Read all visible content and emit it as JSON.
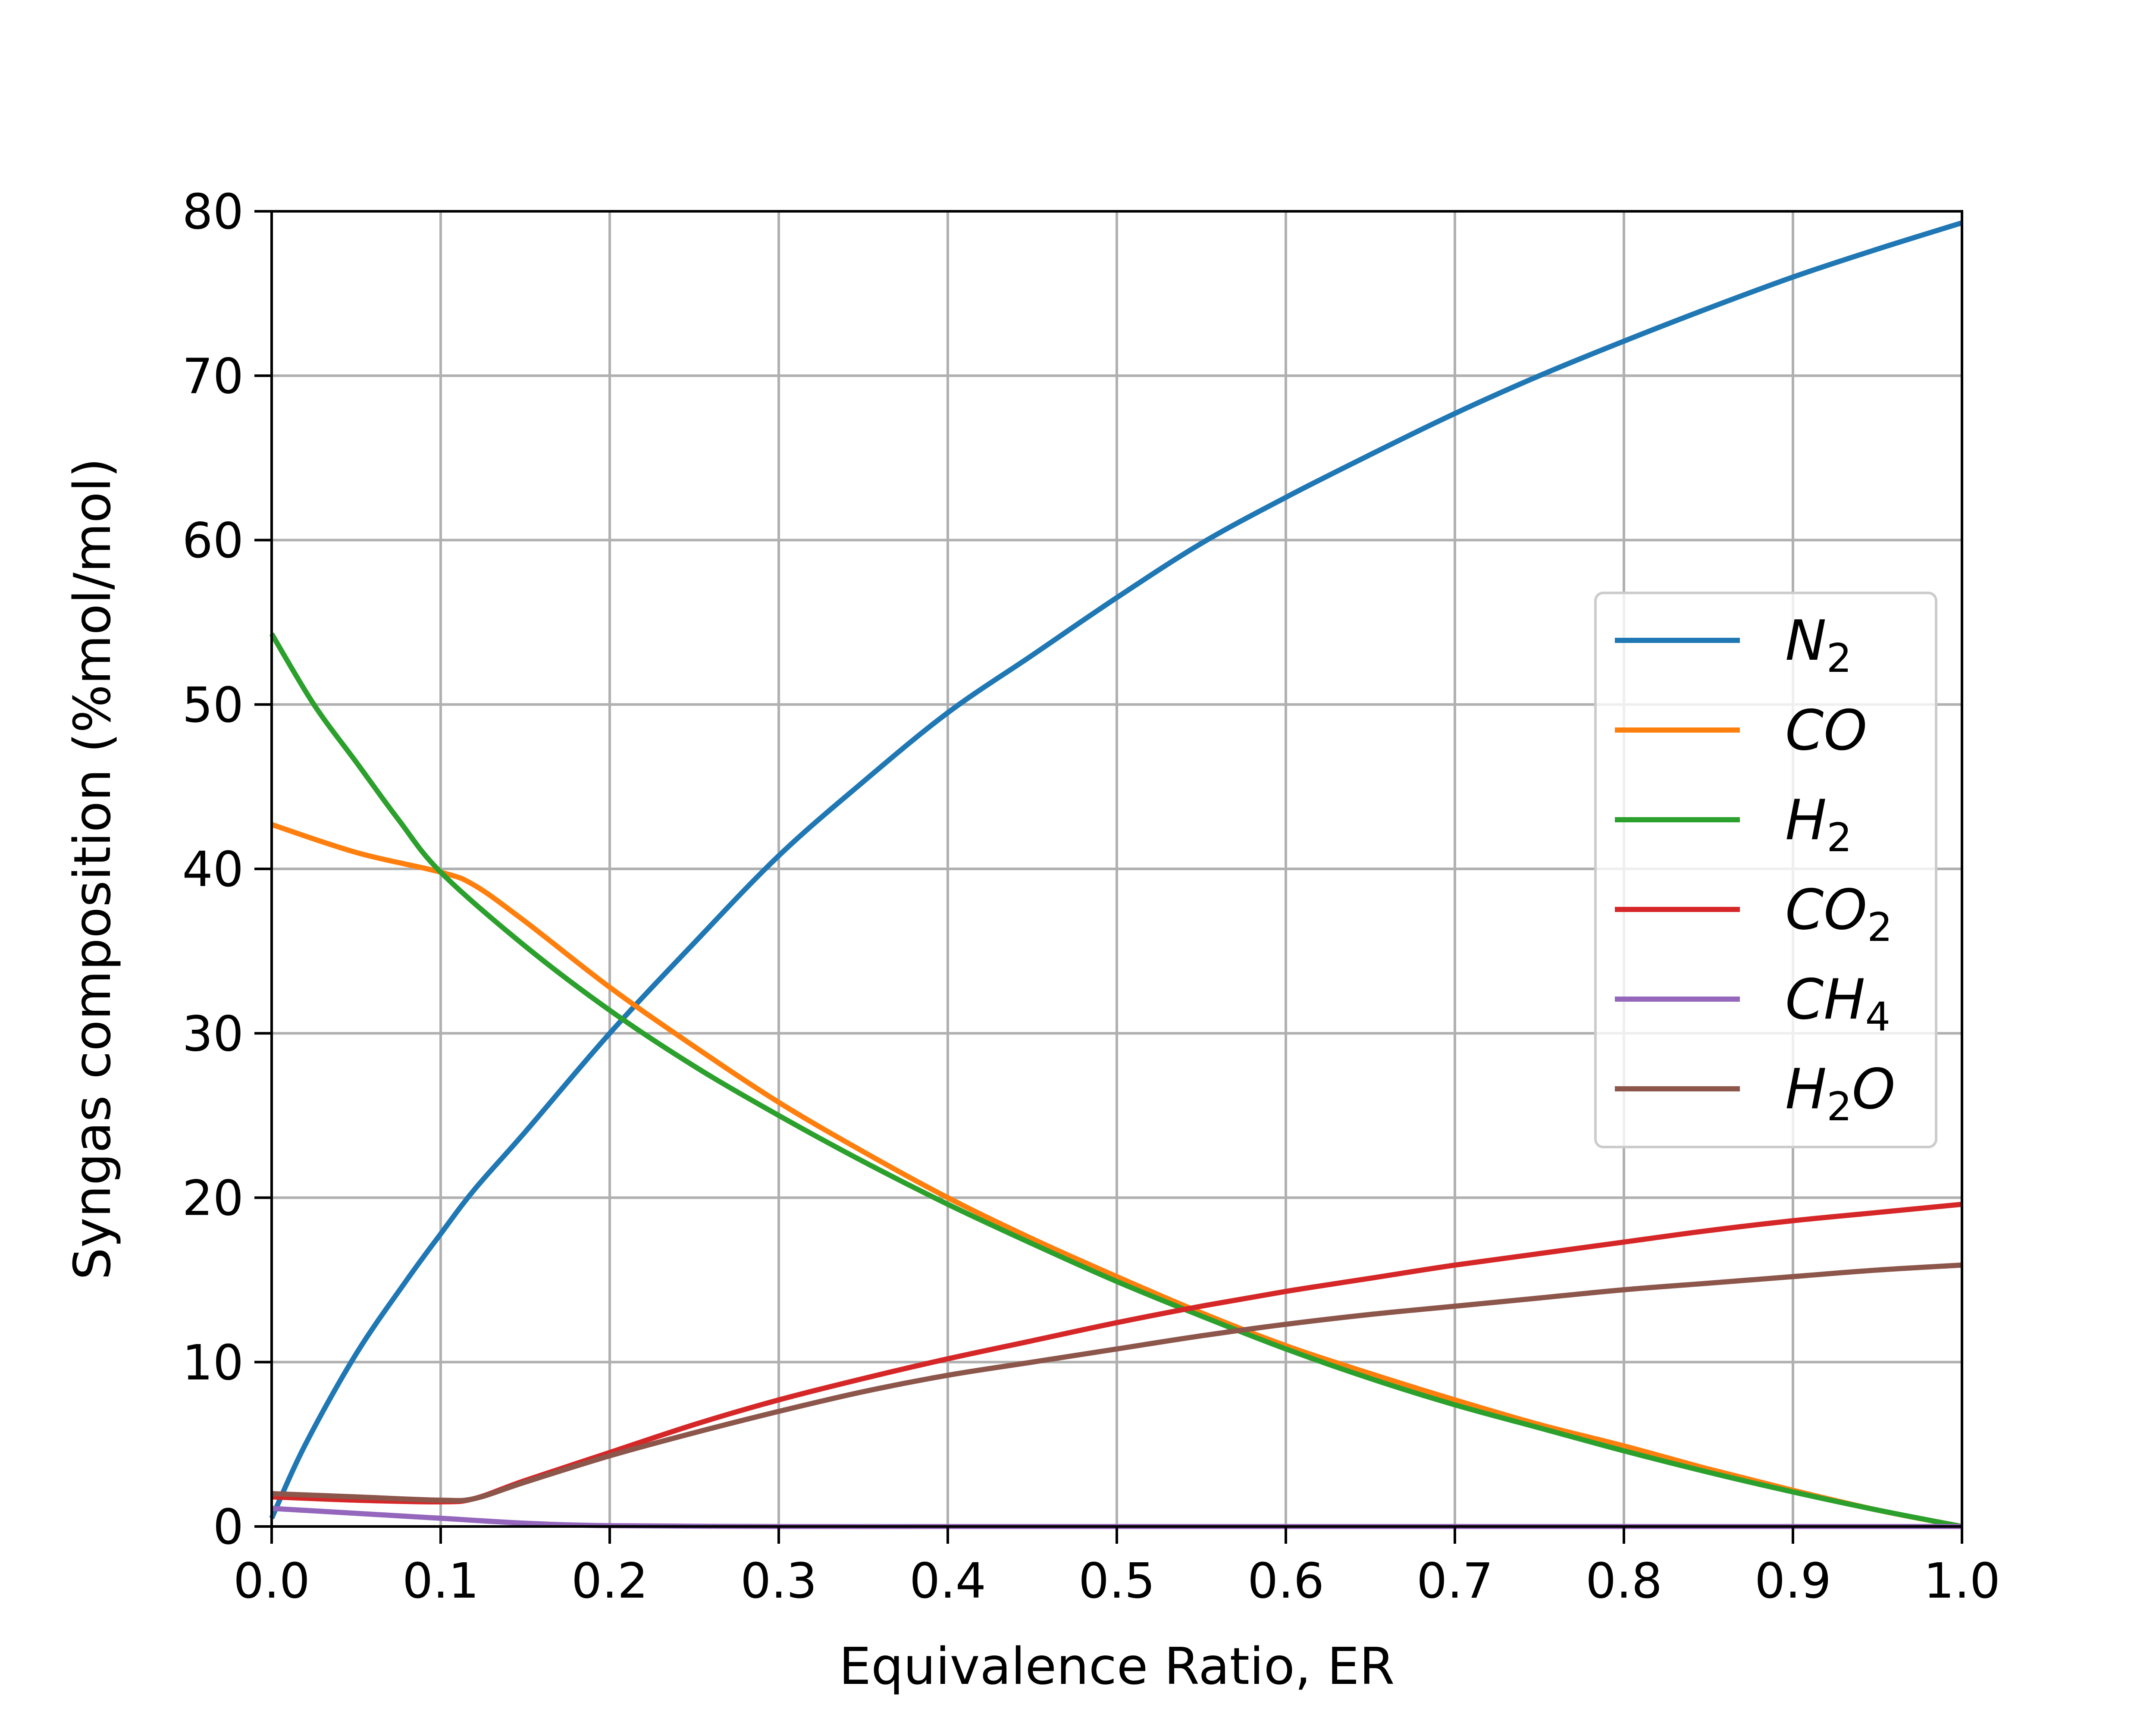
{
  "chart_data": {
    "type": "line",
    "title": "",
    "xlabel": "Equivalence Ratio, ER",
    "ylabel": "Syngas composition (%mol/mol)",
    "xlim": [
      0.0,
      1.0
    ],
    "ylim": [
      0,
      80
    ],
    "xticks": [
      "0.0",
      "0.1",
      "0.2",
      "0.3",
      "0.4",
      "0.5",
      "0.6",
      "0.7",
      "0.8",
      "0.9",
      "1.0"
    ],
    "yticks": [
      "0",
      "10",
      "20",
      "30",
      "40",
      "50",
      "60",
      "70",
      "80"
    ],
    "grid": true,
    "legend_position": "center-right",
    "series": [
      {
        "name": "N2",
        "label_main": "N",
        "label_sub": "2",
        "label_tail": "",
        "color": "#1f77b4",
        "x": [
          0.0,
          0.02,
          0.05,
          0.08,
          0.1,
          0.12,
          0.15,
          0.2,
          0.25,
          0.3,
          0.35,
          0.4,
          0.45,
          0.5,
          0.55,
          0.6,
          0.65,
          0.7,
          0.75,
          0.8,
          0.85,
          0.9,
          0.95,
          1.0
        ],
        "y": [
          0.5,
          5.0,
          10.5,
          15.0,
          17.8,
          20.5,
          24.0,
          30.0,
          35.5,
          40.8,
          45.3,
          49.5,
          53.0,
          56.5,
          59.8,
          62.6,
          65.2,
          67.7,
          70.0,
          72.1,
          74.1,
          76.0,
          77.7,
          79.3
        ]
      },
      {
        "name": "CO",
        "label_main": "CO",
        "label_sub": "",
        "label_tail": "",
        "color": "#ff7f0e",
        "x": [
          0.0,
          0.05,
          0.1,
          0.12,
          0.15,
          0.2,
          0.25,
          0.3,
          0.35,
          0.4,
          0.45,
          0.5,
          0.55,
          0.6,
          0.65,
          0.7,
          0.75,
          0.8,
          0.85,
          0.9,
          0.95,
          1.0
        ],
        "y": [
          42.7,
          41.0,
          39.8,
          39.0,
          36.8,
          32.8,
          29.2,
          25.8,
          22.8,
          20.0,
          17.5,
          15.2,
          13.0,
          11.0,
          9.3,
          7.7,
          6.2,
          4.9,
          3.5,
          2.2,
          1.0,
          0.0
        ]
      },
      {
        "name": "H2",
        "label_main": "H",
        "label_sub": "2",
        "label_tail": "",
        "color": "#2ca02c",
        "x": [
          0.0,
          0.025,
          0.05,
          0.075,
          0.1,
          0.15,
          0.2,
          0.25,
          0.3,
          0.35,
          0.4,
          0.45,
          0.5,
          0.55,
          0.6,
          0.65,
          0.7,
          0.75,
          0.8,
          0.85,
          0.9,
          0.95,
          1.0
        ],
        "y": [
          54.3,
          50.0,
          46.5,
          43.0,
          39.8,
          35.3,
          31.4,
          28.0,
          25.0,
          22.2,
          19.6,
          17.2,
          14.9,
          12.8,
          10.8,
          9.0,
          7.4,
          6.0,
          4.6,
          3.3,
          2.1,
          1.0,
          0.0
        ]
      },
      {
        "name": "CO2",
        "label_main": "CO",
        "label_sub": "2",
        "label_tail": "",
        "color": "#d62728",
        "x": [
          0.0,
          0.05,
          0.1,
          0.12,
          0.15,
          0.2,
          0.25,
          0.3,
          0.35,
          0.4,
          0.45,
          0.5,
          0.55,
          0.6,
          0.65,
          0.7,
          0.75,
          0.8,
          0.85,
          0.9,
          0.95,
          1.0
        ],
        "y": [
          1.8,
          1.6,
          1.5,
          1.7,
          2.8,
          4.5,
          6.2,
          7.7,
          9.0,
          10.2,
          11.3,
          12.4,
          13.4,
          14.3,
          15.1,
          15.9,
          16.6,
          17.3,
          18.0,
          18.6,
          19.1,
          19.6
        ]
      },
      {
        "name": "CH4",
        "label_main": "CH",
        "label_sub": "4",
        "label_tail": "",
        "color": "#9467bd",
        "x": [
          0.0,
          0.05,
          0.1,
          0.15,
          0.2,
          0.3,
          0.4,
          0.5,
          0.6,
          0.7,
          0.8,
          0.9,
          1.0
        ],
        "y": [
          1.1,
          0.8,
          0.5,
          0.2,
          0.05,
          0.0,
          0.0,
          0.0,
          0.0,
          0.0,
          0.0,
          0.0,
          0.0
        ]
      },
      {
        "name": "H2O",
        "label_main": "H",
        "label_sub": "2",
        "label_tail": "O",
        "color": "#8c564b",
        "x": [
          0.0,
          0.05,
          0.1,
          0.12,
          0.15,
          0.2,
          0.25,
          0.3,
          0.35,
          0.4,
          0.45,
          0.5,
          0.55,
          0.6,
          0.65,
          0.7,
          0.75,
          0.8,
          0.85,
          0.9,
          0.95,
          1.0
        ],
        "y": [
          2.0,
          1.8,
          1.6,
          1.7,
          2.7,
          4.3,
          5.7,
          7.0,
          8.2,
          9.2,
          10.0,
          10.8,
          11.6,
          12.3,
          12.9,
          13.4,
          13.9,
          14.4,
          14.8,
          15.2,
          15.6,
          15.9
        ]
      }
    ]
  }
}
